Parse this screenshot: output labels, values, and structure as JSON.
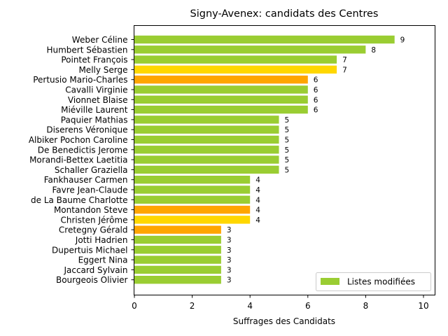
{
  "chart_data": {
    "type": "bar",
    "orientation": "horizontal",
    "title": "Signy-Avenex: candidats des Centres",
    "xlabel": "Suffrages des Candidats",
    "ylabel": "",
    "xlim": [
      0,
      10.4
    ],
    "xticks": [
      0,
      2,
      4,
      6,
      8,
      10
    ],
    "legend": {
      "label": "Listes modifiées",
      "color": "#9acd32",
      "position": "lower-right"
    },
    "bars": [
      {
        "name": "Weber Céline",
        "value": 9,
        "color": "#9acd32"
      },
      {
        "name": "Humbert Sébastien",
        "value": 8,
        "color": "#9acd32"
      },
      {
        "name": "Pointet François",
        "value": 7,
        "color": "#9acd32"
      },
      {
        "name": "Melly Serge",
        "value": 7,
        "color": "#ffd700"
      },
      {
        "name": "Pertusio Mario-Charles",
        "value": 6,
        "color": "#ffa500"
      },
      {
        "name": "Cavalli Virginie",
        "value": 6,
        "color": "#9acd32"
      },
      {
        "name": "Vionnet Blaise",
        "value": 6,
        "color": "#9acd32"
      },
      {
        "name": "Miéville Laurent",
        "value": 6,
        "color": "#9acd32"
      },
      {
        "name": "Paquier Mathias",
        "value": 5,
        "color": "#9acd32"
      },
      {
        "name": "Diserens Véronique",
        "value": 5,
        "color": "#9acd32"
      },
      {
        "name": "Albiker Pochon Caroline",
        "value": 5,
        "color": "#9acd32"
      },
      {
        "name": "De Benedictis Jerome",
        "value": 5,
        "color": "#9acd32"
      },
      {
        "name": "Morandi-Bettex Laetitia",
        "value": 5,
        "color": "#9acd32"
      },
      {
        "name": "Schaller Graziella",
        "value": 5,
        "color": "#9acd32"
      },
      {
        "name": "Fankhauser Carmen",
        "value": 4,
        "color": "#9acd32"
      },
      {
        "name": "Favre Jean-Claude",
        "value": 4,
        "color": "#9acd32"
      },
      {
        "name": "de La Baume Charlotte",
        "value": 4,
        "color": "#9acd32"
      },
      {
        "name": "Montandon Steve",
        "value": 4,
        "color": "#ffa500"
      },
      {
        "name": "Christen Jérôme",
        "value": 4,
        "color": "#ffd700"
      },
      {
        "name": "Cretegny Gérald",
        "value": 3,
        "color": "#ffa500"
      },
      {
        "name": "Jotti Hadrien",
        "value": 3,
        "color": "#9acd32"
      },
      {
        "name": "Dupertuis Michael",
        "value": 3,
        "color": "#9acd32"
      },
      {
        "name": "Eggert Nina",
        "value": 3,
        "color": "#9acd32"
      },
      {
        "name": "Jaccard Sylvain",
        "value": 3,
        "color": "#9acd32"
      },
      {
        "name": "Bourgeois Olivier",
        "value": 3,
        "color": "#9acd32"
      }
    ]
  }
}
